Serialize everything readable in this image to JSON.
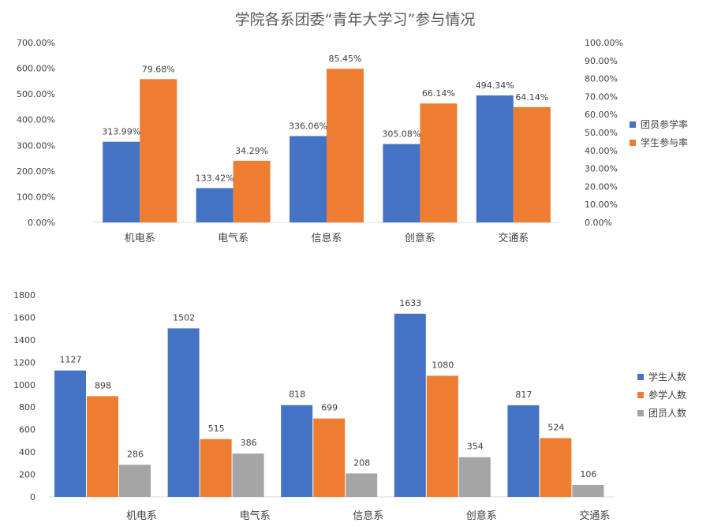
{
  "title": "学院各系团委“青年大学习”参与情况",
  "colors": {
    "blue": "#4472C4",
    "orange": "#ED7D31",
    "gray": "#A5A5A5"
  },
  "chart_data": [
    {
      "type": "bar",
      "categories": [
        "机电系",
        "电气系",
        "信息系",
        "创意系",
        "交通系"
      ],
      "series": [
        {
          "name": "团员参学率",
          "axis": "left",
          "values": [
            313.99,
            133.42,
            336.06,
            305.08,
            494.34
          ],
          "labels": [
            "313.99%",
            "133.42%",
            "336.06%",
            "305.08%",
            "494.34%"
          ],
          "color": "#4472C4"
        },
        {
          "name": "学生参与率",
          "axis": "right",
          "values": [
            79.68,
            34.29,
            85.45,
            66.14,
            64.14
          ],
          "labels": [
            "79.68%",
            "34.29%",
            "85.45%",
            "66.14%",
            "64.14%"
          ],
          "color": "#ED7D31"
        }
      ],
      "left_axis": {
        "ylim": [
          0,
          700
        ],
        "ticks": [
          "0.00%",
          "100.00%",
          "200.00%",
          "300.00%",
          "400.00%",
          "500.00%",
          "600.00%",
          "700.00%"
        ]
      },
      "right_axis": {
        "ylim": [
          0,
          100
        ],
        "ticks": [
          "0.00%",
          "10.00%",
          "20.00%",
          "30.00%",
          "40.00%",
          "50.00%",
          "60.00%",
          "70.00%",
          "80.00%",
          "90.00%",
          "100.00%"
        ]
      },
      "grid": false,
      "legend_position": "right"
    },
    {
      "type": "bar",
      "categories": [
        "机电系",
        "电气系",
        "信息系",
        "创意系",
        "交通系"
      ],
      "series": [
        {
          "name": "学生人数",
          "values": [
            1127,
            1502,
            818,
            1633,
            817
          ],
          "color": "#4472C4"
        },
        {
          "name": "参学人数",
          "values": [
            898,
            515,
            699,
            1080,
            524
          ],
          "color": "#ED7D31"
        },
        {
          "name": "团员人数",
          "values": [
            286,
            386,
            208,
            354,
            106
          ],
          "color": "#A5A5A5"
        }
      ],
      "ylim": [
        0,
        1800
      ],
      "ticks": [
        "0",
        "200",
        "400",
        "600",
        "800",
        "1000",
        "1200",
        "1400",
        "1600",
        "1800"
      ],
      "grid": false,
      "legend_position": "right"
    }
  ]
}
